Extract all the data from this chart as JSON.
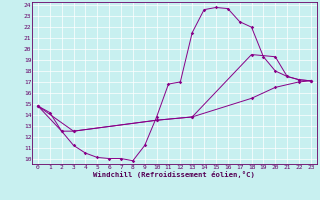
{
  "xlabel": "Windchill (Refroidissement éolien,°C)",
  "bg_color": "#c8f0f0",
  "line_color": "#880088",
  "xlim": [
    -0.5,
    23.5
  ],
  "ylim": [
    9.5,
    24.3
  ],
  "xticks": [
    0,
    1,
    2,
    3,
    4,
    5,
    6,
    7,
    8,
    9,
    10,
    11,
    12,
    13,
    14,
    15,
    16,
    17,
    18,
    19,
    20,
    21,
    22,
    23
  ],
  "yticks": [
    10,
    11,
    12,
    13,
    14,
    15,
    16,
    17,
    18,
    19,
    20,
    21,
    22,
    23,
    24
  ],
  "series1": [
    [
      0,
      14.8
    ],
    [
      1,
      14.2
    ],
    [
      2,
      12.5
    ],
    [
      3,
      11.2
    ],
    [
      4,
      10.5
    ],
    [
      5,
      10.1
    ],
    [
      6,
      10.0
    ],
    [
      7,
      10.0
    ],
    [
      8,
      9.8
    ],
    [
      9,
      11.2
    ],
    [
      10,
      13.8
    ],
    [
      11,
      16.8
    ],
    [
      12,
      17.0
    ],
    [
      13,
      21.5
    ],
    [
      14,
      23.6
    ],
    [
      15,
      23.8
    ],
    [
      16,
      23.7
    ],
    [
      17,
      22.5
    ],
    [
      18,
      22.0
    ],
    [
      19,
      19.3
    ],
    [
      20,
      18.0
    ],
    [
      21,
      17.5
    ],
    [
      22,
      17.2
    ],
    [
      23,
      17.1
    ]
  ],
  "series2": [
    [
      0,
      14.8
    ],
    [
      2,
      12.5
    ],
    [
      3,
      12.5
    ],
    [
      10,
      13.5
    ],
    [
      13,
      13.8
    ],
    [
      18,
      19.5
    ],
    [
      20,
      19.3
    ],
    [
      21,
      17.5
    ],
    [
      22,
      17.2
    ],
    [
      23,
      17.1
    ]
  ],
  "series3": [
    [
      0,
      14.8
    ],
    [
      3,
      12.5
    ],
    [
      10,
      13.5
    ],
    [
      13,
      13.8
    ],
    [
      18,
      15.5
    ],
    [
      20,
      16.5
    ],
    [
      22,
      17.0
    ],
    [
      23,
      17.1
    ]
  ]
}
